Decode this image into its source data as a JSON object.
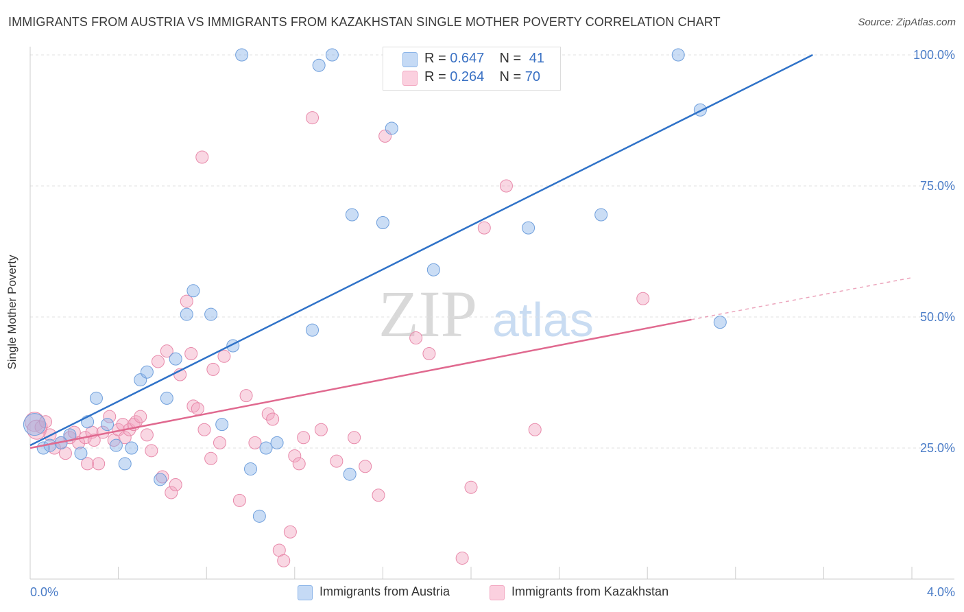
{
  "header": {
    "title": "IMMIGRANTS FROM AUSTRIA VS IMMIGRANTS FROM KAZAKHSTAN SINGLE MOTHER POVERTY CORRELATION CHART",
    "source": "Source: ZipAtlas.com"
  },
  "watermark": {
    "zip": "ZIP",
    "atlas": "atlas"
  },
  "stats_legend": {
    "austria": {
      "r_label": "R =",
      "r_value": "0.647",
      "n_label": "N =",
      "n_value": "41"
    },
    "kazakhstan": {
      "r_label": "R =",
      "r_value": "0.264",
      "n_label": "N =",
      "n_value": "70"
    }
  },
  "chart_data": {
    "type": "scatter",
    "title": "IMMIGRANTS FROM AUSTRIA VS IMMIGRANTS FROM KAZAKHSTAN SINGLE MOTHER POVERTY CORRELATION CHART",
    "xlabel": "",
    "ylabel": "Single Mother Poverty",
    "xlim": [
      0,
      4
    ],
    "ylim": [
      0,
      100
    ],
    "x_tick_labels": [
      "0.0%",
      "4.0%"
    ],
    "y_tick_labels": [
      "25.0%",
      "50.0%",
      "75.0%",
      "100.0%"
    ],
    "y_tick_values": [
      25,
      50,
      75,
      100
    ],
    "grid": true,
    "legend_position": "bottom",
    "colors": {
      "austria": "#8ab4e8",
      "kazakhstan": "#f2a6c0",
      "austria_line": "#2f72c8",
      "kazakhstan_line": "#e0698f",
      "tick_text": "#4a7cc7"
    },
    "series": [
      {
        "name": "Immigrants from Austria",
        "color": "#8ab4e8",
        "points": [
          [
            0.02,
            29.5
          ],
          [
            0.06,
            25
          ],
          [
            0.09,
            25.5
          ],
          [
            0.14,
            26
          ],
          [
            0.18,
            27.5
          ],
          [
            0.23,
            24
          ],
          [
            0.26,
            30
          ],
          [
            0.3,
            34.5
          ],
          [
            0.35,
            29.5
          ],
          [
            0.39,
            25.5
          ],
          [
            0.43,
            22
          ],
          [
            0.46,
            25
          ],
          [
            0.5,
            38
          ],
          [
            0.53,
            39.5
          ],
          [
            0.59,
            19
          ],
          [
            0.62,
            34.5
          ],
          [
            0.66,
            42
          ],
          [
            0.71,
            50.5
          ],
          [
            0.74,
            55
          ],
          [
            0.82,
            50.5
          ],
          [
            0.87,
            29.5
          ],
          [
            0.92,
            44.5
          ],
          [
            0.96,
            100
          ],
          [
            1.0,
            21
          ],
          [
            1.04,
            12
          ],
          [
            1.07,
            25
          ],
          [
            1.12,
            26
          ],
          [
            1.28,
            47.5
          ],
          [
            1.31,
            98
          ],
          [
            1.37,
            100
          ],
          [
            1.45,
            20
          ],
          [
            1.46,
            69.5
          ],
          [
            1.6,
            68
          ],
          [
            1.64,
            86
          ],
          [
            1.83,
            59
          ],
          [
            1.96,
            100
          ],
          [
            2.26,
            67
          ],
          [
            2.59,
            69.5
          ],
          [
            2.94,
            100
          ],
          [
            3.04,
            89.5
          ],
          [
            3.13,
            49
          ]
        ],
        "trend": {
          "x": [
            0,
            3.55
          ],
          "y": [
            25.5,
            100
          ]
        }
      },
      {
        "name": "Immigrants from Kazakhstan",
        "color": "#f2a6c0",
        "points": [
          [
            0.02,
            30
          ],
          [
            0.03,
            28.5
          ],
          [
            0.05,
            29
          ],
          [
            0.07,
            30
          ],
          [
            0.09,
            27.5
          ],
          [
            0.11,
            25
          ],
          [
            0.14,
            26
          ],
          [
            0.16,
            24
          ],
          [
            0.18,
            27
          ],
          [
            0.2,
            28
          ],
          [
            0.22,
            26
          ],
          [
            0.25,
            27
          ],
          [
            0.26,
            22
          ],
          [
            0.28,
            28
          ],
          [
            0.29,
            26.5
          ],
          [
            0.31,
            22
          ],
          [
            0.33,
            28
          ],
          [
            0.36,
            31
          ],
          [
            0.38,
            26.5
          ],
          [
            0.4,
            28.5
          ],
          [
            0.42,
            29.5
          ],
          [
            0.43,
            27
          ],
          [
            0.45,
            28.5
          ],
          [
            0.47,
            29.5
          ],
          [
            0.48,
            30
          ],
          [
            0.5,
            31
          ],
          [
            0.53,
            27.5
          ],
          [
            0.55,
            24.5
          ],
          [
            0.58,
            41.5
          ],
          [
            0.6,
            19.5
          ],
          [
            0.62,
            43.5
          ],
          [
            0.64,
            16.5
          ],
          [
            0.66,
            18
          ],
          [
            0.68,
            39
          ],
          [
            0.71,
            53
          ],
          [
            0.73,
            43
          ],
          [
            0.74,
            33
          ],
          [
            0.76,
            32.5
          ],
          [
            0.78,
            80.5
          ],
          [
            0.79,
            28.5
          ],
          [
            0.82,
            23
          ],
          [
            0.83,
            40
          ],
          [
            0.86,
            26
          ],
          [
            0.88,
            42.5
          ],
          [
            0.95,
            15
          ],
          [
            0.98,
            35
          ],
          [
            1.02,
            26
          ],
          [
            1.08,
            31.5
          ],
          [
            1.1,
            30.5
          ],
          [
            1.13,
            5.5
          ],
          [
            1.15,
            3.5
          ],
          [
            1.18,
            9
          ],
          [
            1.2,
            23.5
          ],
          [
            1.22,
            22
          ],
          [
            1.24,
            27
          ],
          [
            1.28,
            88
          ],
          [
            1.32,
            28.5
          ],
          [
            1.39,
            22.5
          ],
          [
            1.47,
            27
          ],
          [
            1.52,
            21.5
          ],
          [
            1.58,
            16
          ],
          [
            1.61,
            84.5
          ],
          [
            1.75,
            46
          ],
          [
            1.81,
            43
          ],
          [
            1.96,
            4
          ],
          [
            2.0,
            17.5
          ],
          [
            2.06,
            67
          ],
          [
            2.16,
            75
          ],
          [
            2.29,
            28.5
          ],
          [
            2.78,
            53.5
          ]
        ],
        "trend": {
          "x": [
            0,
            3.0
          ],
          "y": [
            25,
            49.5
          ]
        },
        "trend_extension": {
          "x": [
            3.0,
            4.0
          ],
          "y": [
            49.5,
            57.5
          ]
        }
      }
    ]
  },
  "bottom_legend": {
    "austria": "Immigrants from Austria",
    "kazakhstan": "Immigrants from Kazakhstan"
  }
}
